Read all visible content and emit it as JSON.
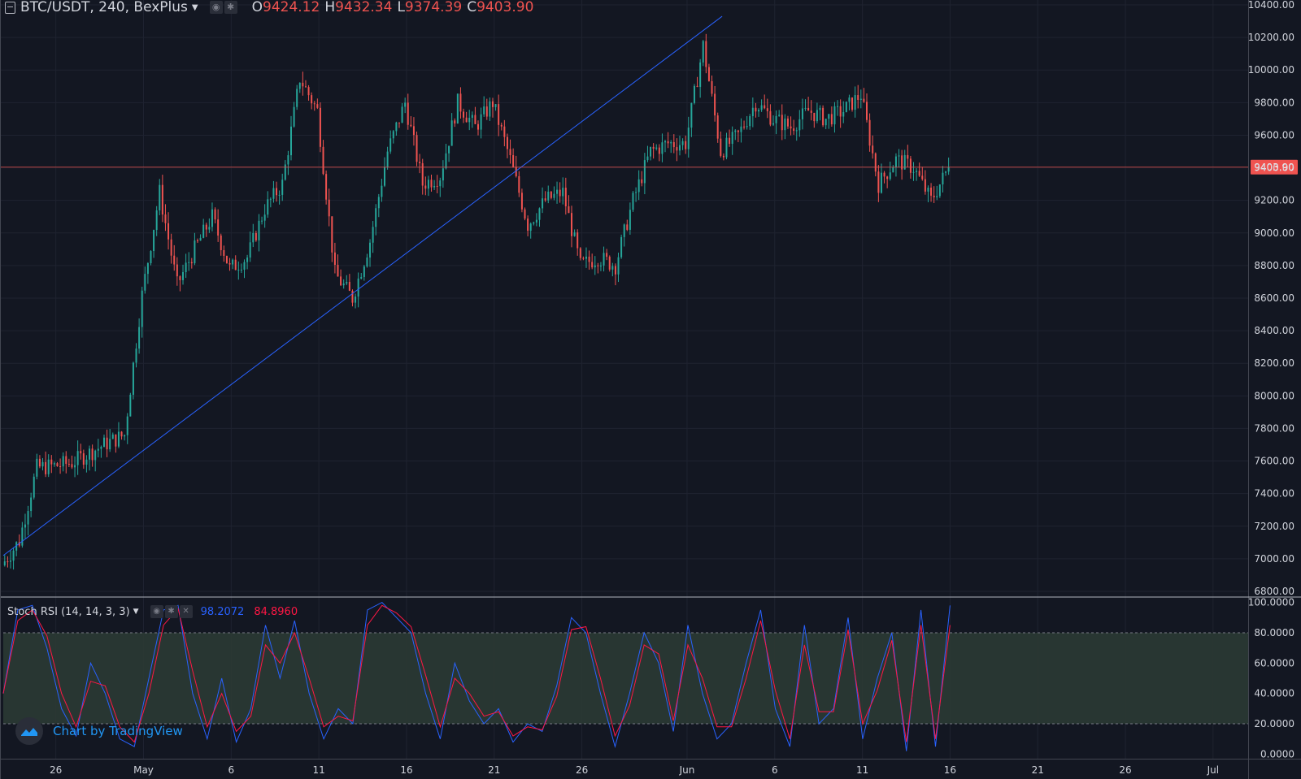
{
  "legend": {
    "symbol": "BTC/USDT, 240, BexPlus",
    "open_label": "O",
    "open": "9424.12",
    "high_label": "H",
    "high": "9432.34",
    "low_label": "L",
    "low": "9374.39",
    "close_label": "C",
    "close": "9403.90"
  },
  "indicator": {
    "name": "Stoch RSI (14, 14, 3, 3)",
    "k_value": "98.2072",
    "d_value": "84.8960"
  },
  "last_price_label": "9403.90",
  "branding": "Chart by TradingView",
  "colors": {
    "background": "#131722",
    "grid": "#1f2330",
    "up": "#26a69a",
    "down": "#ef5350",
    "k_line": "#2962ff",
    "d_line": "#ff1744",
    "trendline": "#2962ff",
    "band_fill": "#2b3a34"
  },
  "icons": [
    "menu-icon",
    "eye-icon",
    "gear-icon",
    "close-icon",
    "tradingview-logo-icon"
  ],
  "chart_data": [
    {
      "type": "candlestick",
      "price_axis": {
        "ticks": [
          "10400.00",
          "10200.00",
          "10000.00",
          "9800.00",
          "9600.00",
          "9400.00",
          "9200.00",
          "9000.00",
          "8800.00",
          "8600.00",
          "8400.00",
          "8200.00",
          "8000.00",
          "7800.00",
          "7600.00",
          "7400.00",
          "7200.00",
          "7000.00",
          "6800.00"
        ],
        "range": [
          6770,
          10430
        ]
      },
      "time_axis": {
        "ticks": [
          "26",
          "May",
          "6",
          "11",
          "16",
          "21",
          "26",
          "Jun",
          "6",
          "11",
          "16",
          "21",
          "26",
          "Jul"
        ],
        "start": "2019-04-23",
        "end": "2019-07-03"
      },
      "current_price": 9403.9,
      "close_path": [
        [
          "2019-04-23",
          6960
        ],
        [
          "2019-04-24",
          7110
        ],
        [
          "2019-04-25",
          7560
        ],
        [
          "2019-04-26",
          7570
        ],
        [
          "2019-04-27",
          7590
        ],
        [
          "2019-04-28",
          7650
        ],
        [
          "2019-04-29",
          7710
        ],
        [
          "2019-04-30",
          7760
        ],
        [
          "2019-05-01",
          8620
        ],
        [
          "2019-05-02",
          9250
        ],
        [
          "2019-05-03",
          8680
        ],
        [
          "2019-05-04",
          8900
        ],
        [
          "2019-05-05",
          9100
        ],
        [
          "2019-05-06",
          8780
        ],
        [
          "2019-05-07",
          8850
        ],
        [
          "2019-05-08",
          9150
        ],
        [
          "2019-05-09",
          9300
        ],
        [
          "2019-05-10",
          9950
        ],
        [
          "2019-05-11",
          9750
        ],
        [
          "2019-05-12",
          8750
        ],
        [
          "2019-05-13",
          8600
        ],
        [
          "2019-05-14",
          8950
        ],
        [
          "2019-05-15",
          9500
        ],
        [
          "2019-05-16",
          9800
        ],
        [
          "2019-05-17",
          9300
        ],
        [
          "2019-05-18",
          9350
        ],
        [
          "2019-05-19",
          9800
        ],
        [
          "2019-05-20",
          9650
        ],
        [
          "2019-05-21",
          9800
        ],
        [
          "2019-05-22",
          9450
        ],
        [
          "2019-05-23",
          9050
        ],
        [
          "2019-05-24",
          9200
        ],
        [
          "2019-05-25",
          9250
        ],
        [
          "2019-05-26",
          8800
        ],
        [
          "2019-05-27",
          8850
        ],
        [
          "2019-05-28",
          8800
        ],
        [
          "2019-05-29",
          9200
        ],
        [
          "2019-05-30",
          9500
        ],
        [
          "2019-05-31",
          9550
        ],
        [
          "2019-06-01",
          9550
        ],
        [
          "2019-06-02",
          10150
        ],
        [
          "2019-06-03",
          9500
        ],
        [
          "2019-06-04",
          9600
        ],
        [
          "2019-06-05",
          9800
        ],
        [
          "2019-06-06",
          9700
        ],
        [
          "2019-06-07",
          9650
        ],
        [
          "2019-06-08",
          9750
        ],
        [
          "2019-06-09",
          9700
        ],
        [
          "2019-06-10",
          9750
        ],
        [
          "2019-06-11",
          9850
        ],
        [
          "2019-06-12",
          9300
        ],
        [
          "2019-06-13",
          9450
        ],
        [
          "2019-06-14",
          9400
        ],
        [
          "2019-06-15",
          9200
        ],
        [
          "2019-06-16",
          9400
        ]
      ],
      "trendline": [
        [
          "2019-04-23",
          7020
        ],
        [
          "2019-06-03",
          10330
        ]
      ]
    },
    {
      "type": "line",
      "title": "Stoch RSI (14, 14, 3, 3)",
      "y_axis": {
        "ticks": [
          "100.0000",
          "80.0000",
          "60.0000",
          "40.0000",
          "20.0000",
          "0.0000"
        ],
        "range": [
          -3,
          103
        ]
      },
      "bands": [
        20,
        80
      ],
      "series": [
        {
          "name": "K",
          "values": [
            40,
            95,
            98,
            70,
            30,
            12,
            60,
            40,
            10,
            5,
            50,
            95,
            98,
            40,
            10,
            50,
            8,
            30,
            85,
            50,
            88,
            40,
            10,
            30,
            20,
            95,
            100,
            90,
            80,
            40,
            10,
            60,
            35,
            20,
            30,
            8,
            20,
            15,
            45,
            90,
            80,
            40,
            5,
            40,
            80,
            60,
            15,
            85,
            40,
            10,
            20,
            60,
            95,
            30,
            5,
            85,
            20,
            30,
            90,
            10,
            50,
            80,
            2,
            95,
            5,
            98
          ]
        },
        {
          "name": "D",
          "values": [
            40,
            88,
            95,
            78,
            40,
            18,
            48,
            45,
            18,
            8,
            40,
            85,
            96,
            55,
            18,
            40,
            15,
            25,
            72,
            60,
            80,
            50,
            18,
            25,
            22,
            85,
            98,
            93,
            84,
            52,
            18,
            50,
            40,
            25,
            28,
            12,
            18,
            16,
            38,
            82,
            84,
            50,
            12,
            32,
            72,
            66,
            22,
            72,
            50,
            18,
            18,
            50,
            88,
            42,
            10,
            72,
            28,
            28,
            82,
            20,
            42,
            75,
            8,
            85,
            10,
            85
          ]
        }
      ]
    }
  ]
}
